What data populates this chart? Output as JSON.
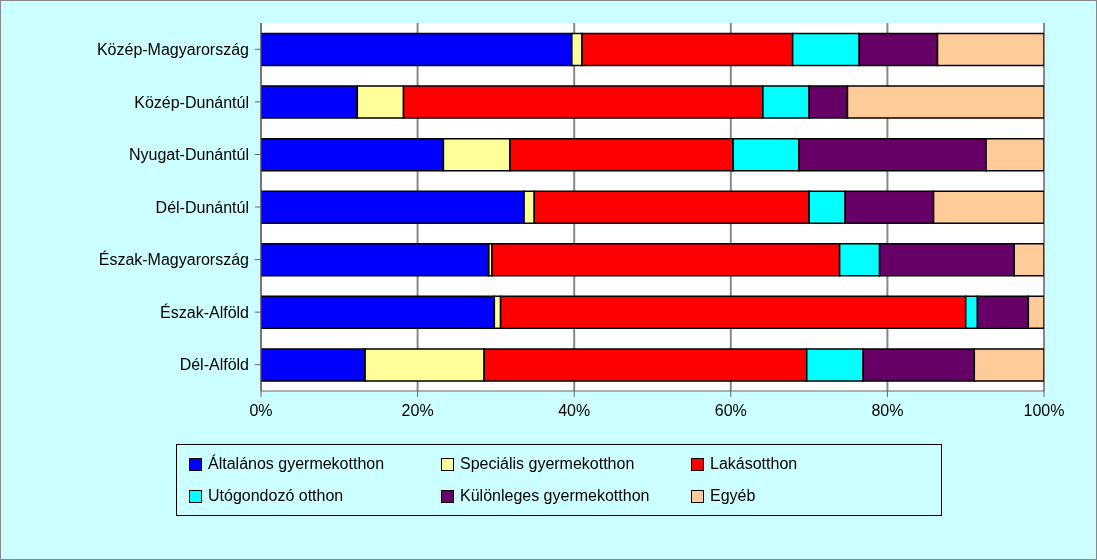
{
  "chart_data": {
    "type": "bar",
    "orientation": "horizontal",
    "stacked": true,
    "categories": [
      "Közép-Magyarország",
      "Közép-Dunántúl",
      "Nyugat-Dunántúl",
      "Dél-Dunántúl",
      "Észak-Magyarország",
      "Észak-Alföld",
      "Dél-Alföld"
    ],
    "series": [
      {
        "name": "Általános gyermekotthon",
        "color": "#0000ff",
        "values": [
          39.7,
          12.3,
          23.3,
          33.6,
          29.1,
          29.8,
          13.3
        ]
      },
      {
        "name": "Speciális gyermekotthon",
        "color": "#ffff99",
        "values": [
          1.3,
          5.9,
          8.5,
          1.3,
          0.4,
          0.8,
          15.2
        ]
      },
      {
        "name": "Lakásotthon",
        "color": "#ff0000",
        "values": [
          26.9,
          45.9,
          28.5,
          35.1,
          44.4,
          59.4,
          41.2
        ]
      },
      {
        "name": "Utógondozó otthon",
        "color": "#00ffff",
        "values": [
          8.5,
          5.9,
          8.4,
          4.6,
          5.1,
          1.5,
          7.2
        ]
      },
      {
        "name": "Különleges gyermekotthon",
        "color": "#660066",
        "values": [
          10.0,
          4.9,
          23.9,
          11.3,
          17.2,
          6.5,
          14.2
        ]
      },
      {
        "name": "Egyéb",
        "color": "#ffcc99",
        "values": [
          13.6,
          25.1,
          7.4,
          14.1,
          3.8,
          2.0,
          8.9
        ]
      }
    ],
    "xlim": [
      0,
      100
    ],
    "xticks": [
      {
        "value": 0,
        "label": "0%"
      },
      {
        "value": 20,
        "label": "20%"
      },
      {
        "value": 40,
        "label": "40%"
      },
      {
        "value": 60,
        "label": "60%"
      },
      {
        "value": 80,
        "label": "80%"
      },
      {
        "value": 100,
        "label": "100%"
      }
    ],
    "grid": "x",
    "legend": "bottom"
  }
}
